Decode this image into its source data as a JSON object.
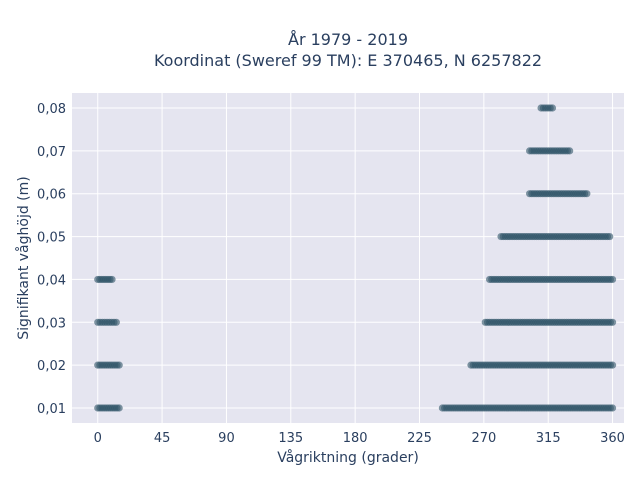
{
  "chart_data": {
    "type": "scatter",
    "title": [
      "År 1979 - 2019",
      "Koordinat (Sweref 99 TM): E 370465, N 6257822"
    ],
    "xlabel": "Vågriktning (grader)",
    "ylabel": "Signifikant våghöjd (m)",
    "xlim": [
      -18,
      368
    ],
    "ylim": [
      0.0065,
      0.0835
    ],
    "xticks": [
      0,
      45,
      90,
      135,
      180,
      225,
      270,
      315,
      360
    ],
    "xtick_labels": [
      "0",
      "45",
      "90",
      "135",
      "180",
      "225",
      "270",
      "315",
      "360"
    ],
    "yticks": [
      0.01,
      0.02,
      0.03,
      0.04,
      0.05,
      0.06,
      0.07,
      0.08
    ],
    "ytick_labels": [
      "0,01",
      "0,02",
      "0,03",
      "0,04",
      "0,05",
      "0,06",
      "0,07",
      "0,08"
    ],
    "grid": true,
    "marker_color": "#2f5368",
    "plot_background": "#e5e5f0",
    "series": [
      {
        "name": "",
        "ranges": [
          {
            "y": 0.01,
            "x": [
              0,
              15
            ]
          },
          {
            "y": 0.02,
            "x": [
              0,
              15
            ]
          },
          {
            "y": 0.03,
            "x": [
              0,
              13
            ]
          },
          {
            "y": 0.04,
            "x": [
              0,
              10
            ]
          },
          {
            "y": 0.01,
            "x": [
              241,
              360
            ]
          },
          {
            "y": 0.02,
            "x": [
              261,
              360
            ]
          },
          {
            "y": 0.03,
            "x": [
              271,
              360
            ]
          },
          {
            "y": 0.04,
            "x": [
              274,
              360
            ]
          },
          {
            "y": 0.05,
            "x": [
              282,
              358
            ]
          },
          {
            "y": 0.06,
            "x": [
              302,
              342
            ]
          },
          {
            "y": 0.07,
            "x": [
              302,
              330
            ]
          },
          {
            "y": 0.08,
            "x": [
              310,
              318
            ]
          }
        ]
      }
    ]
  }
}
